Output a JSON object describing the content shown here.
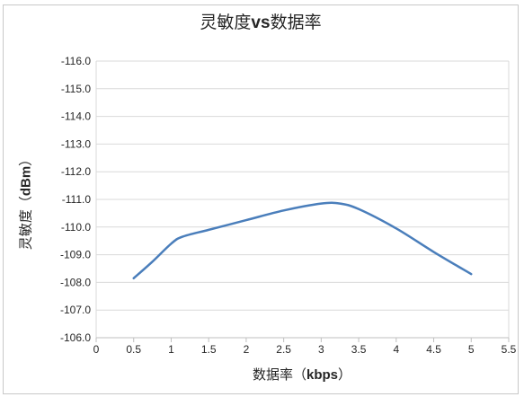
{
  "chart_data": {
    "type": "line",
    "title": {
      "prefix": "灵敏度",
      "vs": "vs",
      "suffix": "数据率"
    },
    "ylabel": {
      "prefix": "灵敏度（",
      "unit": "dBm",
      "suffix": "）"
    },
    "xlabel": {
      "prefix": "数据率（",
      "unit": "kbps",
      "suffix": "）"
    },
    "xlim": [
      0,
      5.5
    ],
    "ylim": [
      -116.0,
      -106.0
    ],
    "y_inverted": true,
    "x_ticks": [
      "0",
      "0.5",
      "1",
      "1.5",
      "2",
      "2.5",
      "3",
      "3.5",
      "4",
      "4.5",
      "5",
      "5.5"
    ],
    "y_ticks": [
      "-106.0",
      "-107.0",
      "-108.0",
      "-109.0",
      "-110.0",
      "-111.0",
      "-112.0",
      "-113.0",
      "-114.0",
      "-115.0",
      "-116.0"
    ],
    "grid": "horizontal",
    "series": [
      {
        "color": "#4a7ebb",
        "x": [
          0.5,
          0.75,
          1.0,
          1.15,
          1.5,
          2.0,
          2.5,
          3.0,
          3.25,
          3.5,
          4.0,
          4.5,
          5.0
        ],
        "y": [
          -108.15,
          -108.75,
          -109.4,
          -109.65,
          -109.9,
          -110.25,
          -110.6,
          -110.85,
          -110.85,
          -110.65,
          -109.95,
          -109.1,
          -108.3
        ]
      }
    ]
  }
}
